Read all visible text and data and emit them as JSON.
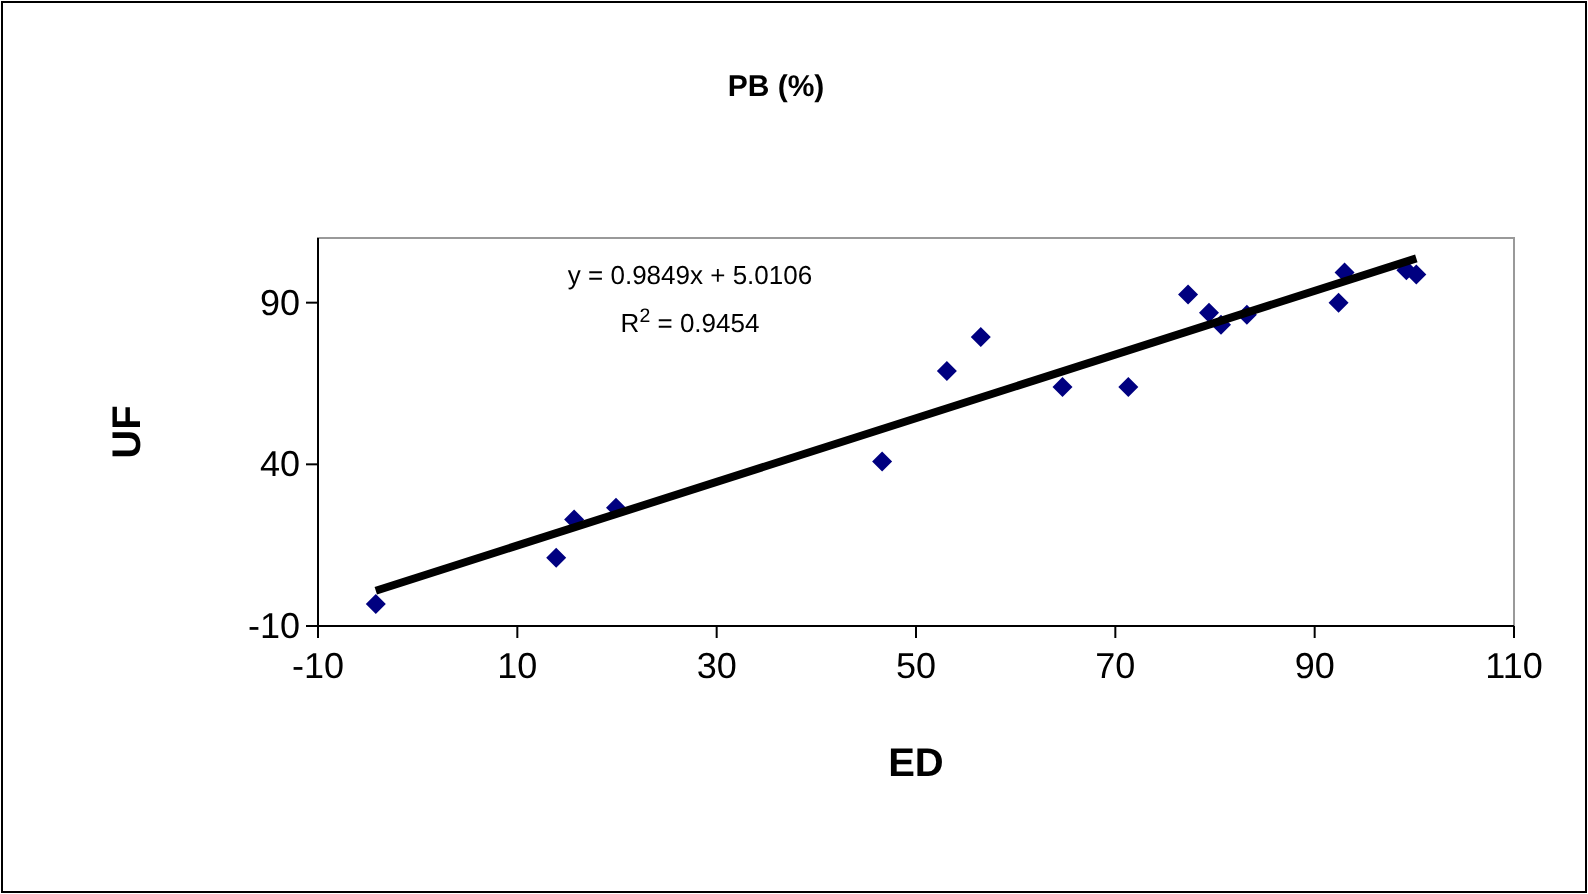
{
  "chart_data": {
    "type": "scatter",
    "title": "PB (%)",
    "xlabel": "ED",
    "ylabel": "UF",
    "xlim": [
      -10,
      110
    ],
    "xticks": [
      -10,
      10,
      30,
      50,
      70,
      90,
      110
    ],
    "ylim": [
      -10,
      110
    ],
    "yticks": [
      -10,
      40,
      90
    ],
    "grid": false,
    "annotations": [
      "y = 0.9849x + 5.0106",
      "R$^{2}$ = 0.9454"
    ],
    "series": [
      {
        "color": "#000080",
        "marker": "diamond",
        "x": [
          -4.2,
          13.9,
          15.7,
          19.9,
          46.6,
          53.1,
          56.5,
          64.7,
          71.3,
          77.3,
          79.4,
          80.6,
          83.2,
          92.4,
          93.0,
          99.2,
          100.2
        ],
        "values": [
          -3.2,
          11.1,
          22.9,
          26.6,
          40.9,
          68.9,
          79.4,
          63.9,
          63.9,
          92.5,
          86.9,
          83.2,
          86.3,
          90,
          99.3,
          100,
          98.7
        ]
      },
      {
        "type": "line",
        "color": "#000000",
        "x": [
          -4.2,
          100.2
        ],
        "values": [
          0.9,
          103.7
        ]
      }
    ]
  }
}
